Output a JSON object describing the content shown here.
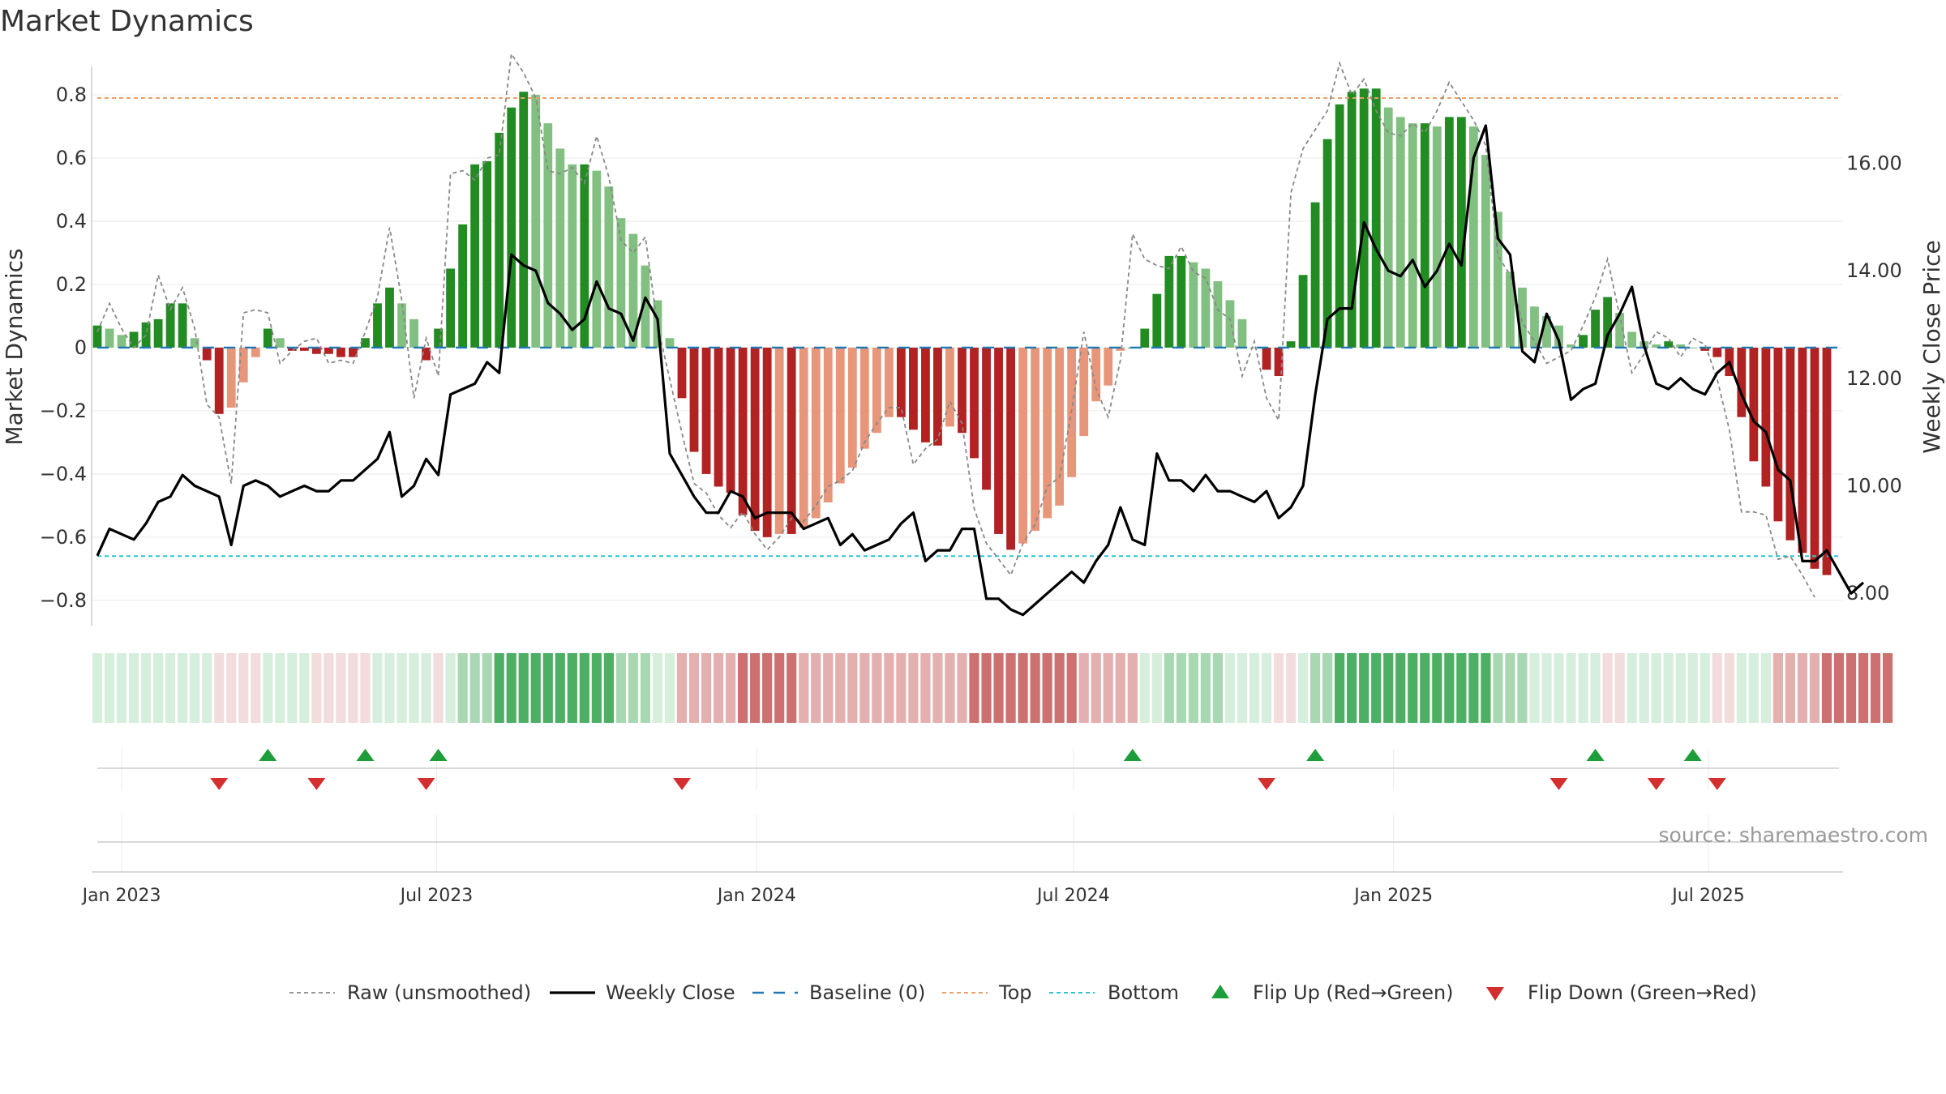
{
  "title": "Market Dynamics",
  "source_note": "source: sharemaestro.com",
  "chart_data": {
    "type": "bar",
    "y_left_label": "Market Dynamics",
    "y_right_label": "Weekly Close Price",
    "y_left_range": [
      -0.88,
      0.89
    ],
    "y_right_range": [
      7.4,
      17.8
    ],
    "y_left_ticks": [
      0.8,
      0.6,
      0.4,
      0.2,
      0,
      -0.2,
      -0.4,
      -0.6,
      -0.8
    ],
    "y_left_tick_labels": [
      "0.8",
      "0.6",
      "0.4",
      "0.2",
      "0",
      "−0.2",
      "−0.4",
      "−0.6",
      "−0.8"
    ],
    "y_right_ticks": [
      16,
      14,
      12,
      10,
      8
    ],
    "y_right_tick_labels": [
      "16.00",
      "14.00",
      "12.00",
      "10.00",
      "8.00"
    ],
    "x_axis": {
      "start_date": "2022-12-18",
      "end_date": "2025-09-14",
      "ticks": [
        {
          "date": "2023-01-01",
          "label": "Jan 2023"
        },
        {
          "date": "2023-07-01",
          "label": "Jul 2023"
        },
        {
          "date": "2024-01-01",
          "label": "Jan 2024"
        },
        {
          "date": "2024-07-01",
          "label": "Jul 2024"
        },
        {
          "date": "2025-01-01",
          "label": "Jan 2025"
        },
        {
          "date": "2025-07-01",
          "label": "Jul 2025"
        }
      ]
    },
    "weekly_start": "2022-12-18",
    "reference_lines": {
      "top": 0.79,
      "bottom": -0.66,
      "baseline": 0
    },
    "series": [
      {
        "name": "Market Dynamics",
        "values": [
          0.07,
          0.06,
          0.04,
          0.05,
          0.08,
          0.09,
          0.14,
          0.14,
          0.03,
          -0.04,
          -0.21,
          -0.19,
          -0.11,
          -0.03,
          0.06,
          0.03,
          -0.01,
          -0.01,
          -0.02,
          -0.02,
          -0.03,
          -0.03,
          0.03,
          0.14,
          0.19,
          0.14,
          0.09,
          -0.04,
          0.06,
          0.25,
          0.39,
          0.58,
          0.59,
          0.68,
          0.76,
          0.81,
          0.8,
          0.71,
          0.63,
          0.58,
          0.58,
          0.56,
          0.51,
          0.41,
          0.36,
          0.26,
          0.15,
          0.03,
          -0.16,
          -0.33,
          -0.4,
          -0.44,
          -0.46,
          -0.53,
          -0.58,
          -0.6,
          -0.59,
          -0.59,
          -0.57,
          -0.54,
          -0.49,
          -0.43,
          -0.38,
          -0.32,
          -0.27,
          -0.22,
          -0.22,
          -0.26,
          -0.3,
          -0.31,
          -0.25,
          -0.27,
          -0.35,
          -0.45,
          -0.59,
          -0.64,
          -0.62,
          -0.58,
          -0.54,
          -0.5,
          -0.41,
          -0.28,
          -0.17,
          -0.12,
          -0.01,
          0,
          0.06,
          0.17,
          0.29,
          0.29,
          0.27,
          0.25,
          0.21,
          0.15,
          0.09,
          0,
          -0.07,
          -0.09,
          0.02,
          0.23,
          0.46,
          0.66,
          0.77,
          0.81,
          0.82,
          0.82,
          0.76,
          0.73,
          0.71,
          0.71,
          0.7,
          0.73,
          0.73,
          0.7,
          0.61,
          0.43,
          0.24,
          0.19,
          0.13,
          0.1,
          0.07,
          0.01,
          0.04,
          0.12,
          0.16,
          0.11,
          0.05,
          0.02,
          0.01,
          0.02,
          0.01,
          0,
          -0.01,
          -0.03,
          -0.09,
          -0.22,
          -0.36,
          -0.44,
          -0.55,
          -0.61,
          -0.65,
          -0.7,
          -0.72
        ],
        "palette": {
          "up_strong": "#228B22",
          "up_weak": "#82C082",
          "down_strong": "#B22222",
          "down_weak": "#E8967A"
        }
      },
      {
        "name": "Weekly Close",
        "values": [
          8.7,
          9.2,
          9.1,
          9.0,
          9.3,
          9.7,
          9.8,
          10.2,
          10.0,
          9.9,
          9.8,
          8.9,
          10.0,
          10.1,
          10.0,
          9.8,
          9.9,
          10.0,
          9.9,
          9.9,
          10.1,
          10.1,
          10.3,
          10.5,
          11.0,
          9.8,
          10.0,
          10.5,
          10.2,
          11.7,
          11.8,
          11.9,
          12.3,
          12.1,
          14.3,
          14.1,
          14.0,
          13.4,
          13.2,
          12.9,
          13.1,
          13.8,
          13.3,
          13.2,
          12.7,
          13.5,
          13.1,
          10.6,
          10.2,
          9.8,
          9.5,
          9.5,
          9.9,
          9.8,
          9.4,
          9.5,
          9.5,
          9.5,
          9.2,
          9.3,
          9.4,
          8.9,
          9.1,
          8.8,
          8.9,
          9.0,
          9.3,
          9.5,
          8.6,
          8.8,
          8.8,
          9.2,
          9.2,
          7.9,
          7.9,
          7.7,
          7.6,
          7.8,
          8.0,
          8.2,
          8.4,
          8.2,
          8.6,
          8.9,
          9.6,
          9.0,
          8.9,
          10.6,
          10.1,
          10.1,
          9.9,
          10.2,
          9.9,
          9.9,
          9.8,
          9.7,
          9.9,
          9.4,
          9.6,
          10.0,
          11.7,
          13.1,
          13.3,
          13.3,
          14.9,
          14.4,
          14.0,
          13.9,
          14.2,
          13.7,
          14.0,
          14.5,
          14.1,
          16.1,
          16.7,
          14.6,
          14.3,
          12.5,
          12.3,
          13.2,
          12.7,
          11.6,
          11.8,
          11.9,
          12.8,
          13.2,
          13.7,
          12.6,
          11.9,
          11.8,
          12.0,
          11.8,
          11.7,
          12.1,
          12.3,
          11.7,
          11.2,
          11.0,
          10.3,
          10.1,
          8.6,
          8.6,
          8.8,
          8.4,
          8.0,
          8.2
        ],
        "color": "#000000"
      },
      {
        "name": "Raw (unsmoothed)",
        "values": [
          0.05,
          0.14,
          0.06,
          0,
          0.04,
          0.23,
          0.12,
          0.19,
          0.06,
          -0.18,
          -0.22,
          -0.43,
          0.11,
          0.12,
          0.11,
          -0.05,
          -0.01,
          0.02,
          0.03,
          -0.05,
          -0.04,
          -0.05,
          0.05,
          0.16,
          0.38,
          0.15,
          -0.16,
          0.03,
          -0.09,
          0.55,
          0.56,
          0.53,
          0.6,
          0.61,
          0.93,
          0.87,
          0.79,
          0.56,
          0.55,
          0.57,
          0.52,
          0.67,
          0.54,
          0.34,
          0.3,
          0.35,
          0.07,
          -0.1,
          -0.27,
          -0.43,
          -0.46,
          -0.53,
          -0.57,
          -0.52,
          -0.59,
          -0.64,
          -0.6,
          -0.54,
          -0.55,
          -0.5,
          -0.44,
          -0.42,
          -0.39,
          -0.3,
          -0.24,
          -0.19,
          -0.19,
          -0.37,
          -0.32,
          -0.29,
          -0.17,
          -0.24,
          -0.51,
          -0.62,
          -0.67,
          -0.72,
          -0.62,
          -0.56,
          -0.44,
          -0.41,
          -0.2,
          0.05,
          -0.13,
          -0.22,
          -0.04,
          0.36,
          0.28,
          0.26,
          0.25,
          0.32,
          0.24,
          0.22,
          0.12,
          0.09,
          -0.09,
          0.02,
          -0.16,
          -0.23,
          0.49,
          0.63,
          0.69,
          0.75,
          0.9,
          0.8,
          0.85,
          0.75,
          0.68,
          0.67,
          0.71,
          0.68,
          0.75,
          0.84,
          0.78,
          0.72,
          0.64,
          0.29,
          0.23,
          0.08,
          0.02,
          -0.05,
          -0.03,
          -0.01,
          0.07,
          0.16,
          0.28,
          0.1,
          -0.08,
          -0.02,
          0.05,
          0.03,
          -0.03,
          0.03,
          0.01,
          -0.1,
          -0.26,
          -0.52,
          -0.52,
          -0.53,
          -0.67,
          -0.66,
          -0.72,
          -0.79
        ],
        "color": "#888888"
      }
    ],
    "regime_strip": [
      1,
      1,
      1,
      1,
      1,
      1,
      1,
      1,
      1,
      1,
      -1,
      -1,
      -1,
      -1,
      1,
      1,
      1,
      1,
      -1,
      -1,
      -1,
      -1,
      -1,
      1,
      1,
      1,
      1,
      1,
      -1,
      1,
      2,
      2,
      2,
      3,
      3,
      3,
      3,
      3,
      3,
      3,
      3,
      3,
      3,
      2,
      2,
      2,
      1,
      1,
      -2,
      -2,
      -2,
      -2,
      -2,
      -3,
      -3,
      -3,
      -3,
      -3,
      -2,
      -2,
      -2,
      -2,
      -2,
      -2,
      -2,
      -2,
      -2,
      -2,
      -2,
      -2,
      -2,
      -2,
      -3,
      -3,
      -3,
      -3,
      -3,
      -3,
      -3,
      -3,
      -3,
      -2,
      -2,
      -2,
      -2,
      -2,
      1,
      1,
      2,
      2,
      2,
      2,
      2,
      1,
      1,
      1,
      1,
      -1,
      -1,
      1,
      2,
      2,
      3,
      3,
      3,
      3,
      3,
      3,
      3,
      3,
      3,
      3,
      3,
      3,
      3,
      2,
      2,
      2,
      1,
      1,
      1,
      1,
      1,
      1,
      -1,
      -1,
      1,
      1,
      1,
      1,
      1,
      1,
      1,
      -1,
      -1,
      1,
      1,
      1,
      -2,
      -2,
      -2,
      -2,
      -3,
      -3,
      -3,
      -3,
      -3,
      -3
    ],
    "flip_up_dates": [
      "2023-03-26",
      "2023-05-21",
      "2023-07-02",
      "2024-08-04",
      "2024-11-17",
      "2025-04-27",
      "2025-06-22"
    ],
    "flip_down_dates": [
      "2023-02-26",
      "2023-04-23",
      "2023-06-25",
      "2023-11-19",
      "2024-10-20",
      "2025-04-06",
      "2025-06-01",
      "2025-07-06"
    ],
    "colors": {
      "flip_up": "#1E9E3A",
      "flip_down": "#D32F2F",
      "top_line": "#E8A066",
      "bottom_line": "#2EC4D6",
      "baseline": "#1F77B4",
      "strip_green": [
        "#D6EEDC",
        "#A8D8B2",
        "#4CAF63"
      ],
      "strip_red": [
        "#F2DCDC",
        "#E3AFAF",
        "#CC7070"
      ]
    },
    "legend": {
      "placement": "bottom-center",
      "entries": [
        {
          "label": "Raw (unsmoothed)",
          "style": "dashed-gray"
        },
        {
          "label": "Weekly Close",
          "style": "solid-black"
        },
        {
          "label": "Baseline (0)",
          "style": "dashed-blue"
        },
        {
          "label": "Top",
          "style": "dotted-orange"
        },
        {
          "label": "Bottom",
          "style": "dotted-cyan"
        },
        {
          "label": "Flip Up (Red→Green)",
          "style": "triangle-up-green"
        },
        {
          "label": "Flip Down (Green→Red)",
          "style": "triangle-down-red"
        }
      ]
    }
  }
}
